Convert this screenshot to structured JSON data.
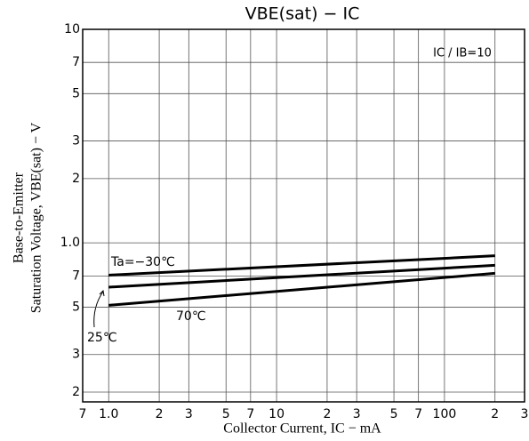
{
  "chart_data": {
    "type": "line",
    "title": "VBE(sat) − IC",
    "x_label": "Collector Current, IC − mA",
    "y_label": [
      "Base-to-Emitter",
      "Saturation Voltage, VBE(sat) − V"
    ],
    "annotation": "IC / IB=10",
    "log_x": true,
    "log_y": true,
    "grid": true,
    "xlim": [
      0.7,
      300
    ],
    "ylim": [
      0.18,
      10
    ],
    "xticks": [
      {
        "value": 0.7,
        "label": "7"
      },
      {
        "value": 1,
        "label": "1.0"
      },
      2,
      3,
      5,
      7,
      10,
      {
        "value": 20,
        "label": "2"
      },
      {
        "value": 30,
        "label": "3"
      },
      {
        "value": 50,
        "label": "5"
      },
      {
        "value": 70,
        "label": "7"
      },
      100,
      {
        "value": 200,
        "label": "2"
      },
      {
        "value": 300,
        "label": "3"
      }
    ],
    "yticks": [
      {
        "value": 0.2,
        "label": "2"
      },
      {
        "value": 0.3,
        "label": "3"
      },
      {
        "value": 0.5,
        "label": "5"
      },
      {
        "value": 0.7,
        "label": "7"
      },
      {
        "value": 1,
        "label": "1.0"
      },
      2,
      3,
      5,
      7,
      10
    ],
    "x": [
      1,
      200
    ],
    "series": [
      {
        "name": "Ta=−30℃",
        "color": "#000000",
        "values": [
          0.706,
          0.87
        ]
      },
      {
        "name": "25℃",
        "color": "#000000",
        "values": [
          0.62,
          0.785
        ]
      },
      {
        "name": "70℃",
        "color": "#000000",
        "values": [
          0.51,
          0.72
        ]
      }
    ]
  }
}
